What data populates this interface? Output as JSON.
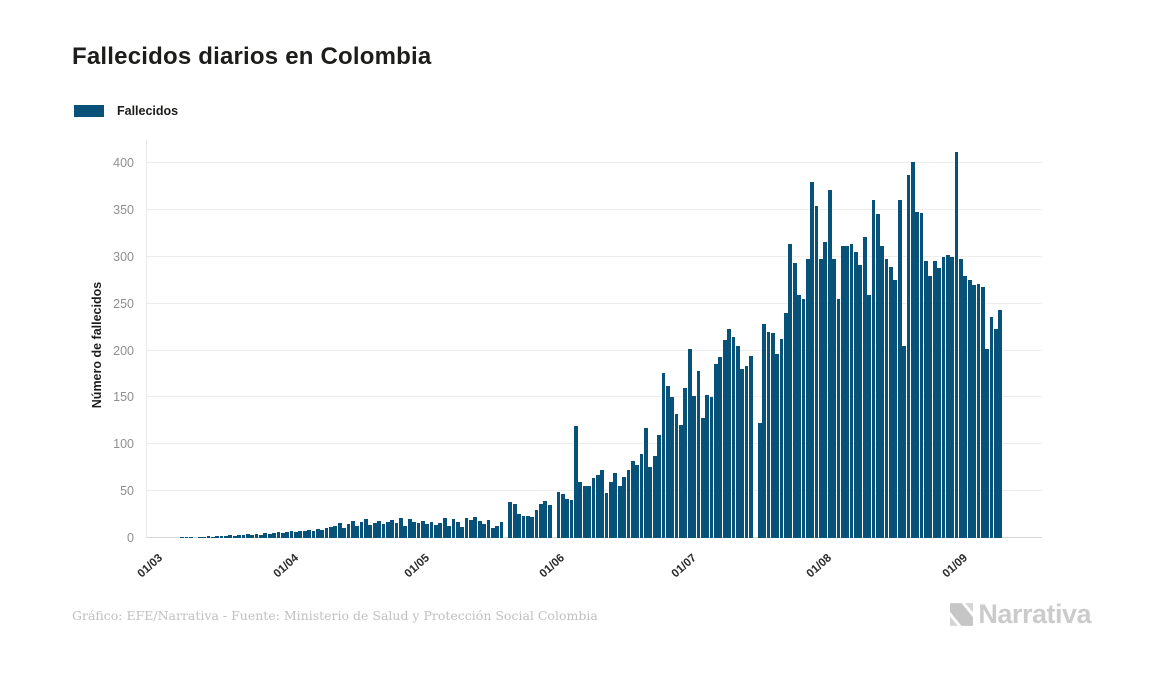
{
  "title": "Fallecidos diarios en Colombia",
  "legend": {
    "label": "Fallecidos",
    "color": "#085279"
  },
  "y_axis": {
    "title": "Número de fallecidos",
    "ticks": [
      0,
      50,
      100,
      150,
      200,
      250,
      300,
      350,
      400
    ]
  },
  "x_axis": {
    "ticks": [
      {
        "label": "01/03",
        "day": 0
      },
      {
        "label": "01/04",
        "day": 31
      },
      {
        "label": "01/05",
        "day": 61
      },
      {
        "label": "01/06",
        "day": 92
      },
      {
        "label": "01/07",
        "day": 122
      },
      {
        "label": "01/08",
        "day": 153
      },
      {
        "label": "01/09",
        "day": 184
      }
    ]
  },
  "footer": {
    "credit": "Gráfico: EFE/Narrativa - Fuente: Ministerio de Salud y Protección Social Colombia"
  },
  "logo": {
    "text": "Narrativa"
  },
  "chart_data": {
    "type": "bar",
    "title": "Fallecidos diarios en Colombia",
    "series_name": "Fallecidos",
    "xlabel": "",
    "ylabel": "Número de fallecidos",
    "ylim": [
      0,
      420
    ],
    "grid": true,
    "legend_position": "top-left",
    "bar_color": "#085279",
    "x_tick_labels": [
      "01/03",
      "01/04",
      "01/05",
      "01/06",
      "01/07",
      "01/08",
      "01/09"
    ],
    "x_is_daily_from": "01/03",
    "values": [
      0,
      0,
      0,
      0,
      0,
      0,
      1,
      1,
      1,
      0,
      1,
      1,
      2,
      1,
      2,
      2,
      2,
      3,
      2,
      3,
      3,
      4,
      3,
      4,
      3,
      5,
      4,
      5,
      6,
      5,
      6,
      7,
      6,
      8,
      7,
      9,
      8,
      10,
      9,
      11,
      12,
      13,
      16,
      11,
      15,
      18,
      13,
      17,
      20,
      14,
      16,
      18,
      15,
      17,
      19,
      16,
      21,
      13,
      20,
      17,
      16,
      18,
      15,
      17,
      14,
      16,
      21,
      13,
      20,
      17,
      12,
      21,
      19,
      22,
      18,
      15,
      19,
      11,
      13,
      17,
      0,
      38,
      36,
      26,
      23,
      24,
      22,
      30,
      36,
      39,
      35,
      0,
      49,
      47,
      42,
      41,
      119,
      60,
      55,
      56,
      64,
      67,
      73,
      48,
      60,
      69,
      55,
      65,
      73,
      82,
      78,
      90,
      117,
      76,
      87,
      110,
      176,
      162,
      150,
      132,
      121,
      160,
      202,
      151,
      178,
      128,
      153,
      150,
      186,
      193,
      211,
      223,
      214,
      205,
      180,
      184,
      194,
      0,
      123,
      228,
      220,
      219,
      196,
      212,
      240,
      314,
      293,
      259,
      255,
      298,
      380,
      354,
      298,
      316,
      371,
      298,
      255,
      311,
      312,
      314,
      305,
      291,
      321,
      259,
      361,
      346,
      312,
      298,
      289,
      275,
      361,
      205,
      387,
      401,
      348,
      347,
      295,
      280,
      296,
      288,
      300,
      302,
      300,
      412,
      298,
      280,
      275,
      270,
      271,
      268,
      202,
      236,
      223,
      243
    ]
  }
}
